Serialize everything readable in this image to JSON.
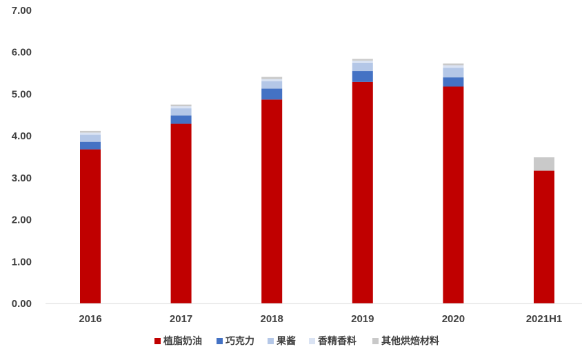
{
  "chart_data": {
    "type": "bar",
    "stacked": true,
    "categories": [
      "2016",
      "2017",
      "2018",
      "2019",
      "2020",
      "2021H1"
    ],
    "series": [
      {
        "name": "植脂奶油",
        "color": "#c00000",
        "values": [
          3.68,
          4.29,
          4.87,
          5.29,
          5.18,
          3.17
        ]
      },
      {
        "name": "巧克力",
        "color": "#4472c4",
        "values": [
          0.18,
          0.2,
          0.26,
          0.26,
          0.22,
          0.0
        ]
      },
      {
        "name": "果酱",
        "color": "#b4c7e7",
        "values": [
          0.17,
          0.17,
          0.18,
          0.2,
          0.23,
          0.0
        ]
      },
      {
        "name": "香精香料",
        "color": "#dae3f3",
        "values": [
          0.05,
          0.05,
          0.05,
          0.05,
          0.06,
          0.0
        ]
      },
      {
        "name": "其他烘焙材料",
        "color": "#c9c9c9",
        "values": [
          0.04,
          0.04,
          0.05,
          0.04,
          0.04,
          0.32
        ]
      }
    ],
    "ylim": [
      0,
      7
    ],
    "yticks": [
      "0.00",
      "1.00",
      "2.00",
      "3.00",
      "4.00",
      "5.00",
      "6.00",
      "7.00"
    ],
    "grid": false,
    "legend_position": "bottom"
  }
}
